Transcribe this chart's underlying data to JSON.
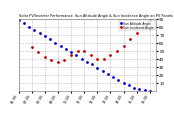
{
  "title": "Solar PV/Inverter Performance  Sun Altitude Angle & Sun Incidence Angle on PV Panels",
  "legend_labels": [
    "Sun Altitude Angle",
    "Sun Incidence Angle"
  ],
  "legend_colors": [
    "#0000cc",
    "#cc0000"
  ],
  "bg_color": "#ffffff",
  "plot_bg": "#ffffff",
  "grid_color": "#aaaaaa",
  "text_color": "#000000",
  "spine_color": "#888888",
  "ylim": [
    0,
    90
  ],
  "yticks": [
    10,
    20,
    30,
    40,
    50,
    60,
    70,
    80,
    90
  ],
  "blue_x": [
    0.0,
    0.4,
    0.8,
    1.2,
    1.6,
    2.0,
    2.4,
    2.8,
    3.2,
    3.6,
    4.0,
    4.4,
    4.8,
    5.2,
    5.6,
    6.0,
    6.4,
    6.8,
    7.2,
    7.6,
    8.0,
    8.4,
    8.8,
    9.2,
    9.6,
    10.0
  ],
  "blue_y": [
    88,
    84,
    80,
    76,
    72,
    68,
    64,
    60,
    56,
    52,
    48,
    44,
    40,
    36,
    33,
    29,
    25,
    21,
    17,
    13,
    10,
    7,
    4,
    2,
    1,
    0
  ],
  "red_x": [
    1.0,
    1.5,
    2.0,
    2.5,
    3.0,
    3.5,
    4.0,
    4.5,
    5.0,
    5.5,
    6.0,
    6.5,
    7.0,
    7.5,
    8.0,
    8.5,
    9.0,
    9.5,
    10.0
  ],
  "red_y": [
    55,
    48,
    42,
    38,
    36,
    38,
    44,
    50,
    50,
    45,
    40,
    40,
    44,
    50,
    56,
    64,
    72,
    80,
    88
  ],
  "xlim": [
    0,
    10.5
  ],
  "xtick_labels": [
    "06:00",
    "07:00",
    "08:00",
    "09:00",
    "10:00",
    "11:00",
    "12:00",
    "13:00",
    "14:00",
    "15:00",
    "16:00"
  ],
  "xtick_positions": [
    0,
    1,
    2,
    3,
    4,
    5,
    6,
    7,
    8,
    9,
    10
  ]
}
